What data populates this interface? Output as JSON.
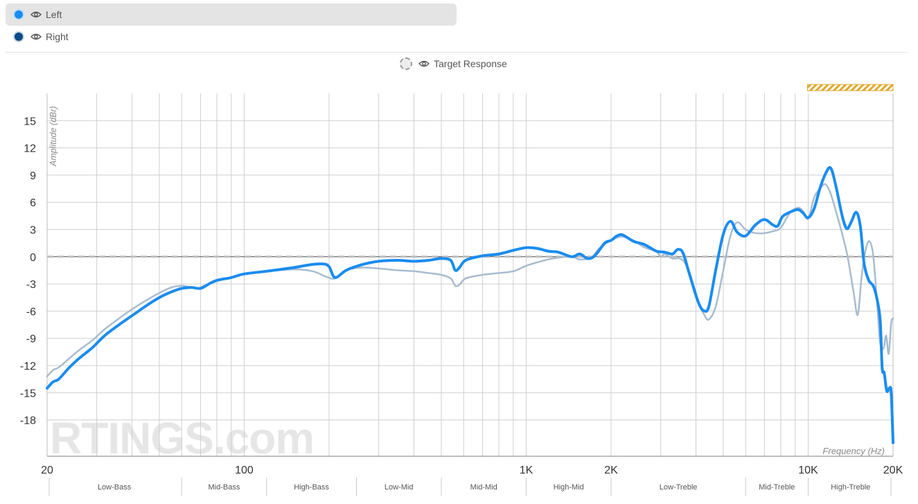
{
  "legend": {
    "items": [
      {
        "label": "Left",
        "color": "#1a8cf0",
        "selected": true
      },
      {
        "label": "Right",
        "color": "#0a4a86",
        "selected": false
      }
    ],
    "target": {
      "label": "Target Response"
    }
  },
  "chart_data": {
    "type": "line",
    "x_scale": "log",
    "xlabel": "Frequency (Hz)",
    "ylabel": "Amplitude (dBr)",
    "xlim": [
      20,
      20000
    ],
    "ylim": [
      -22,
      18
    ],
    "y_ticks": [
      15,
      12,
      9,
      6,
      3,
      0,
      -3,
      -6,
      -9,
      -12,
      -15,
      -18
    ],
    "x_ticks": [
      {
        "value": 20,
        "label": "20"
      },
      {
        "value": 100,
        "label": "100"
      },
      {
        "value": 1000,
        "label": "1K"
      },
      {
        "value": 2000,
        "label": "2K"
      },
      {
        "value": 10000,
        "label": "10K"
      },
      {
        "value": 20000,
        "label": "20K"
      }
    ],
    "grid": true,
    "reference_line": 0,
    "highlight_band": {
      "from": 10000,
      "to": 20000,
      "color": "#e0a82e"
    },
    "watermark": "RTINGS.com",
    "bands": [
      {
        "label": "Low-Bass",
        "from": 20,
        "to": 60
      },
      {
        "label": "Mid-Bass",
        "from": 60,
        "to": 120
      },
      {
        "label": "High-Bass",
        "from": 120,
        "to": 250
      },
      {
        "label": "Low-Mid",
        "from": 250,
        "to": 500
      },
      {
        "label": "Mid-Mid",
        "from": 500,
        "to": 1000
      },
      {
        "label": "High-Mid",
        "from": 1000,
        "to": 2000
      },
      {
        "label": "Low-Treble",
        "from": 2000,
        "to": 6000
      },
      {
        "label": "Mid-Treble",
        "from": 6000,
        "to": 10000
      },
      {
        "label": "High-Treble",
        "from": 10000,
        "to": 20000
      }
    ],
    "series": [
      {
        "name": "Right",
        "color": "#a7bccf",
        "width": 2.5,
        "points": [
          [
            20,
            -13.2
          ],
          [
            21,
            -12.5
          ],
          [
            22,
            -12.2
          ],
          [
            24,
            -11.2
          ],
          [
            26,
            -10.3
          ],
          [
            29,
            -9.2
          ],
          [
            32,
            -8
          ],
          [
            36,
            -6.8
          ],
          [
            40,
            -5.8
          ],
          [
            45,
            -4.8
          ],
          [
            50,
            -4
          ],
          [
            55,
            -3.4
          ],
          [
            60,
            -3.2
          ],
          [
            63,
            -3.3
          ],
          [
            68,
            -3.5
          ],
          [
            72,
            -3.2
          ],
          [
            80,
            -2.7
          ],
          [
            90,
            -2.3
          ],
          [
            100,
            -1.9
          ],
          [
            120,
            -1.6
          ],
          [
            150,
            -1.4
          ],
          [
            175,
            -1.6
          ],
          [
            195,
            -2.2
          ],
          [
            210,
            -2.4
          ],
          [
            230,
            -1.5
          ],
          [
            260,
            -1.2
          ],
          [
            300,
            -1.3
          ],
          [
            350,
            -1.5
          ],
          [
            400,
            -1.6
          ],
          [
            450,
            -1.8
          ],
          [
            500,
            -2
          ],
          [
            540,
            -2.4
          ],
          [
            560,
            -3.2
          ],
          [
            580,
            -3.1
          ],
          [
            610,
            -2.4
          ],
          [
            700,
            -2
          ],
          [
            800,
            -1.8
          ],
          [
            900,
            -1.6
          ],
          [
            1000,
            -1
          ],
          [
            1100,
            -0.6
          ],
          [
            1200,
            -0.3
          ],
          [
            1300,
            -0.1
          ],
          [
            1450,
            0
          ],
          [
            1550,
            -0.3
          ],
          [
            1700,
            -0.1
          ],
          [
            1800,
            0.8
          ],
          [
            1900,
            1.4
          ],
          [
            2000,
            1.8
          ],
          [
            2100,
            2.1
          ],
          [
            2200,
            2.2
          ],
          [
            2400,
            1.8
          ],
          [
            2600,
            1.1
          ],
          [
            2750,
            0.8
          ],
          [
            2900,
            0.6
          ],
          [
            3000,
            0
          ],
          [
            3100,
            0.3
          ],
          [
            3300,
            -0.2
          ],
          [
            3500,
            -0.2
          ],
          [
            3700,
            -1
          ],
          [
            4000,
            -4.5
          ],
          [
            4300,
            -6.5
          ],
          [
            4450,
            -6.9
          ],
          [
            4700,
            -5.5
          ],
          [
            5000,
            -1.5
          ],
          [
            5300,
            2.3
          ],
          [
            5600,
            3.8
          ],
          [
            6000,
            3
          ],
          [
            6500,
            2.6
          ],
          [
            7000,
            2.6
          ],
          [
            7500,
            2.8
          ],
          [
            8000,
            3.2
          ],
          [
            8600,
            4.8
          ],
          [
            9200,
            5.4
          ],
          [
            9600,
            5
          ],
          [
            10000,
            4.2
          ],
          [
            10500,
            6.5
          ],
          [
            11000,
            7.5
          ],
          [
            11500,
            8
          ],
          [
            12000,
            7
          ],
          [
            12600,
            4.8
          ],
          [
            13200,
            2.5
          ],
          [
            13800,
            0
          ],
          [
            14500,
            -4
          ],
          [
            15000,
            -6.4
          ],
          [
            15500,
            -2
          ],
          [
            16000,
            0.8
          ],
          [
            16500,
            1.7
          ],
          [
            17000,
            0.2
          ],
          [
            17500,
            -4.5
          ],
          [
            18000,
            -9.5
          ],
          [
            18500,
            -10.1
          ],
          [
            18900,
            -8.7
          ],
          [
            19300,
            -10.7
          ],
          [
            19700,
            -7.3
          ],
          [
            20000,
            -6.8
          ]
        ]
      },
      {
        "name": "Left",
        "color": "#1a8cf0",
        "width": 4,
        "points": [
          [
            20,
            -14.5
          ],
          [
            21,
            -13.8
          ],
          [
            22,
            -13.5
          ],
          [
            24,
            -12.2
          ],
          [
            26,
            -11.2
          ],
          [
            29,
            -10
          ],
          [
            32,
            -8.7
          ],
          [
            36,
            -7.5
          ],
          [
            40,
            -6.5
          ],
          [
            45,
            -5.4
          ],
          [
            50,
            -4.5
          ],
          [
            55,
            -3.9
          ],
          [
            60,
            -3.5
          ],
          [
            65,
            -3.4
          ],
          [
            70,
            -3.5
          ],
          [
            75,
            -3
          ],
          [
            80,
            -2.6
          ],
          [
            90,
            -2.3
          ],
          [
            100,
            -1.9
          ],
          [
            120,
            -1.6
          ],
          [
            150,
            -1.2
          ],
          [
            170,
            -0.9
          ],
          [
            190,
            -0.8
          ],
          [
            200,
            -1.1
          ],
          [
            210,
            -2.3
          ],
          [
            230,
            -1.5
          ],
          [
            260,
            -0.9
          ],
          [
            300,
            -0.5
          ],
          [
            350,
            -0.4
          ],
          [
            400,
            -0.5
          ],
          [
            450,
            -0.4
          ],
          [
            500,
            -0.2
          ],
          [
            540,
            -0.4
          ],
          [
            560,
            -1.5
          ],
          [
            580,
            -1.2
          ],
          [
            610,
            -0.4
          ],
          [
            700,
            0.1
          ],
          [
            800,
            0.3
          ],
          [
            900,
            0.7
          ],
          [
            1000,
            1
          ],
          [
            1100,
            0.9
          ],
          [
            1200,
            0.6
          ],
          [
            1300,
            0.5
          ],
          [
            1450,
            0
          ],
          [
            1550,
            0.3
          ],
          [
            1650,
            -0.2
          ],
          [
            1750,
            0.1
          ],
          [
            1900,
            1.5
          ],
          [
            2000,
            1.8
          ],
          [
            2100,
            2.3
          ],
          [
            2200,
            2.4
          ],
          [
            2400,
            1.7
          ],
          [
            2600,
            1.4
          ],
          [
            2750,
            1
          ],
          [
            2900,
            0.6
          ],
          [
            3100,
            0.5
          ],
          [
            3300,
            0.3
          ],
          [
            3450,
            0.8
          ],
          [
            3600,
            0.4
          ],
          [
            3800,
            -2
          ],
          [
            4100,
            -5.2
          ],
          [
            4300,
            -6
          ],
          [
            4450,
            -5.4
          ],
          [
            4700,
            -1.5
          ],
          [
            5000,
            2.5
          ],
          [
            5300,
            3.9
          ],
          [
            5600,
            2.7
          ],
          [
            6000,
            2.3
          ],
          [
            6500,
            3.5
          ],
          [
            7000,
            4.1
          ],
          [
            7500,
            3.5
          ],
          [
            7800,
            3.4
          ],
          [
            8100,
            4.4
          ],
          [
            8600,
            4.9
          ],
          [
            9200,
            5.2
          ],
          [
            9600,
            4.8
          ],
          [
            10000,
            4.3
          ],
          [
            10500,
            5.3
          ],
          [
            11000,
            7.5
          ],
          [
            11500,
            9.1
          ],
          [
            12000,
            9.8
          ],
          [
            12500,
            8
          ],
          [
            13200,
            4.5
          ],
          [
            13700,
            3.1
          ],
          [
            14200,
            3.8
          ],
          [
            14800,
            4.9
          ],
          [
            15300,
            3.4
          ],
          [
            15800,
            -0.8
          ],
          [
            16400,
            -2.6
          ],
          [
            17000,
            -3.2
          ],
          [
            17500,
            -4.5
          ],
          [
            18000,
            -7
          ],
          [
            18300,
            -12.3
          ],
          [
            18600,
            -12.8
          ],
          [
            19000,
            -14.8
          ],
          [
            19400,
            -14.5
          ],
          [
            19700,
            -15
          ],
          [
            20000,
            -20.5
          ]
        ]
      }
    ]
  }
}
